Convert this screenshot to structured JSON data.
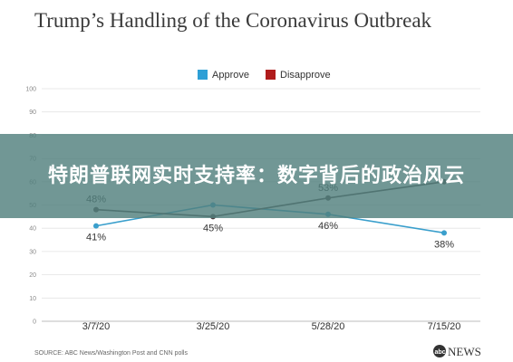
{
  "overlay": {
    "headline": "特朗普联网实时支持率：数字背后的政治风云"
  },
  "source": "SOURCE: ABC News/Washington Post and CNN polls",
  "logo_text": "NEWS",
  "colors": {
    "approve": "#3a9fcc",
    "disapprove": "#4a3d3f",
    "approve_legend": "#2e9fd6",
    "disapprove_legend": "#b01c1c",
    "grid": "#e3e3e3",
    "overlay": "#52807e"
  },
  "chart_data": {
    "type": "line",
    "title": "Trump’s Handling of the Coronavirus Outbreak",
    "categories": [
      "3/7/20",
      "3/25/20",
      "5/28/20",
      "7/15/20"
    ],
    "ylim": [
      0,
      100
    ],
    "y_ticks": [
      0,
      10,
      20,
      30,
      40,
      50,
      60,
      70,
      80,
      90,
      100
    ],
    "grid": true,
    "legend_position": "top-center",
    "series": [
      {
        "name": "Approve",
        "values": [
          41,
          50,
          46,
          38
        ],
        "labels": [
          "41%",
          "",
          "46%",
          "38%"
        ]
      },
      {
        "name": "Disapprove",
        "values": [
          48,
          45,
          53,
          60
        ],
        "labels": [
          "48%",
          "45%",
          "53%",
          ""
        ]
      }
    ]
  }
}
